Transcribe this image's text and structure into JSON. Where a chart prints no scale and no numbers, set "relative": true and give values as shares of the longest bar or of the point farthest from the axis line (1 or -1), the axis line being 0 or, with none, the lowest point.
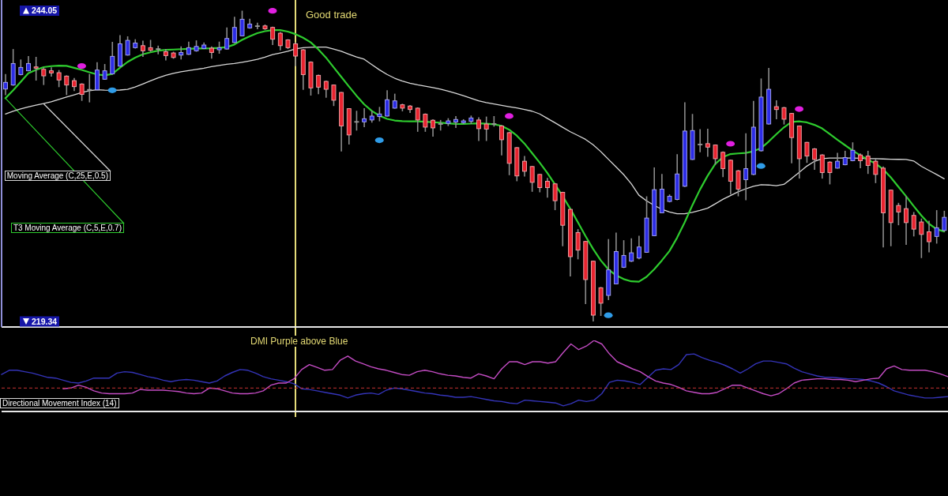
{
  "chart_data": [
    {
      "type": "candlestick",
      "categories": [
        null,
        null,
        null,
        null,
        null,
        null,
        null,
        null,
        null,
        null,
        null,
        null,
        null,
        null,
        null,
        null,
        null,
        null,
        null,
        null,
        null,
        null,
        null,
        null,
        null,
        null,
        null,
        null,
        null,
        null,
        null,
        null,
        null,
        null,
        null,
        null,
        null,
        null,
        null,
        null,
        null,
        null,
        null,
        null,
        null,
        null,
        null,
        null,
        null,
        null,
        null,
        null,
        null,
        null,
        null,
        null,
        null,
        null,
        null,
        null,
        null,
        null,
        null,
        null,
        null,
        null,
        null,
        null,
        null,
        null,
        null,
        null,
        null,
        null,
        null,
        null,
        null,
        null,
        null,
        null,
        null,
        null,
        null,
        null,
        null,
        null,
        null,
        null,
        null,
        null,
        null,
        null,
        null,
        null,
        null,
        null,
        null,
        null,
        null,
        null,
        null,
        null,
        null,
        null,
        null,
        null,
        null,
        null,
        null,
        null,
        null,
        null,
        null,
        null,
        null,
        null,
        null,
        null,
        null,
        null,
        null,
        null,
        null,
        null
      ],
      "ohlc": [
        [
          237.82,
          239.02,
          237.34,
          238.35
        ],
        [
          238.14,
          241.0,
          238.08,
          239.85
        ],
        [
          238.97,
          240.17,
          238.91,
          239.54
        ],
        [
          239.27,
          240.44,
          239.23,
          239.85
        ],
        [
          239.58,
          240.38,
          238.49,
          239.48
        ],
        [
          239.39,
          239.54,
          238.14,
          238.87
        ],
        [
          239.27,
          239.54,
          238.81,
          239.1
        ],
        [
          239.12,
          239.33,
          237.97,
          238.54
        ],
        [
          238.85,
          238.91,
          237.34,
          238.14
        ],
        [
          238.49,
          238.7,
          237.66,
          238.01
        ],
        [
          238.22,
          238.28,
          236.88,
          237.39
        ],
        [
          237.76,
          239.02,
          236.76,
          237.76
        ],
        [
          237.76,
          239.96,
          237.72,
          239.33
        ],
        [
          238.6,
          239.81,
          238.56,
          239.27
        ],
        [
          239.02,
          241.57,
          238.97,
          240.42
        ],
        [
          239.64,
          242.11,
          239.6,
          241.42
        ],
        [
          240.52,
          242.01,
          240.48,
          241.69
        ],
        [
          241.11,
          241.78,
          241.04,
          241.48
        ],
        [
          241.27,
          241.67,
          240.38,
          240.86
        ],
        [
          241.11,
          241.73,
          240.79,
          240.9
        ],
        [
          241.0,
          241.27,
          240.58,
          241.0
        ],
        [
          240.79,
          241.0,
          240.1,
          240.48
        ],
        [
          240.69,
          240.79,
          240.23,
          240.33
        ],
        [
          240.52,
          241.21,
          240.17,
          240.73
        ],
        [
          240.58,
          241.59,
          240.54,
          241.11
        ],
        [
          240.86,
          241.69,
          240.79,
          241.21
        ],
        [
          241.04,
          241.52,
          241.0,
          241.32
        ],
        [
          241.07,
          241.21,
          240.23,
          240.73
        ],
        [
          240.94,
          241.59,
          240.63,
          241.11
        ],
        [
          241.0,
          242.72,
          240.96,
          241.84
        ],
        [
          241.52,
          243.57,
          241.48,
          242.72
        ],
        [
          242.05,
          244.05,
          242.01,
          243.37
        ],
        [
          242.68,
          243.41,
          242.63,
          242.99
        ],
        [
          242.82,
          243.09,
          242.57,
          242.82
        ],
        [
          242.84,
          242.95,
          242.53,
          242.61
        ],
        [
          242.72,
          242.78,
          241.32,
          241.78
        ],
        [
          242.26,
          242.36,
          240.9,
          241.27
        ],
        [
          241.73,
          241.78,
          241.0,
          241.11
        ],
        [
          241.42,
          241.52,
          239.64,
          240.44
        ],
        [
          240.94,
          241.0,
          237.76,
          238.97
        ],
        [
          239.96,
          240.02,
          237.3,
          237.91
        ],
        [
          238.91,
          238.97,
          237.41,
          237.97
        ],
        [
          238.43,
          238.49,
          237.13,
          237.8
        ],
        [
          238.14,
          238.18,
          236.47,
          236.93
        ],
        [
          237.55,
          237.59,
          232.85,
          234.88
        ],
        [
          236.26,
          236.3,
          233.41,
          234.17
        ],
        [
          235.21,
          236.09,
          234.52,
          235.21
        ],
        [
          235.21,
          236.3,
          234.79,
          235.46
        ],
        [
          235.36,
          236.09,
          235.15,
          235.67
        ],
        [
          235.63,
          236.4,
          235.25,
          235.84
        ],
        [
          235.67,
          237.72,
          235.63,
          236.97
        ],
        [
          236.3,
          237.45,
          236.26,
          236.88
        ],
        [
          236.57,
          236.65,
          236.05,
          236.3
        ],
        [
          236.47,
          236.55,
          235.92,
          236.19
        ],
        [
          236.3,
          236.36,
          234.42,
          235.36
        ],
        [
          235.82,
          235.88,
          234.42,
          234.79
        ],
        [
          235.34,
          235.42,
          234.04,
          234.73
        ],
        [
          235.04,
          235.36,
          234.52,
          235.04
        ],
        [
          235.09,
          235.5,
          234.88,
          235.29
        ],
        [
          235.19,
          235.67,
          234.73,
          235.4
        ],
        [
          235.15,
          235.42,
          235.04,
          235.29
        ],
        [
          235.25,
          235.71,
          235.04,
          235.52
        ],
        [
          235.36,
          235.57,
          233.69,
          234.67
        ],
        [
          235.04,
          235.63,
          233.69,
          234.63
        ],
        [
          235.04,
          235.67,
          234.83,
          235.04
        ],
        [
          234.88,
          234.94,
          232.54,
          233.79
        ],
        [
          234.35,
          234.42,
          230.97,
          231.91
        ],
        [
          233.16,
          233.2,
          230.49,
          230.91
        ],
        [
          232.08,
          232.49,
          230.86,
          231.28
        ],
        [
          231.66,
          231.7,
          229.65,
          230.4
        ],
        [
          231.03,
          231.07,
          229.61,
          229.98
        ],
        [
          230.49,
          230.76,
          229.19,
          229.98
        ],
        [
          230.28,
          230.34,
          228.19,
          228.94
        ],
        [
          229.61,
          229.65,
          225.32,
          226.99
        ],
        [
          228.25,
          228.29,
          222.92,
          224.49
        ],
        [
          226.41,
          226.68,
          224.28,
          225.01
        ],
        [
          225.7,
          225.74,
          220.72,
          222.67
        ],
        [
          224.13,
          224.17,
          219.34,
          219.84
        ],
        [
          222.02,
          222.08,
          219.78,
          220.79
        ],
        [
          221.41,
          225.89,
          221.04,
          223.44
        ],
        [
          222.33,
          226.41,
          222.29,
          224.9
        ],
        [
          223.65,
          225.8,
          223.59,
          224.59
        ],
        [
          224.13,
          225.95,
          224.07,
          224.8
        ],
        [
          224.38,
          226.16,
          224.28,
          225.26
        ],
        [
          224.84,
          229.29,
          224.8,
          227.56
        ],
        [
          226.16,
          231.59,
          226.12,
          229.82
        ],
        [
          227.98,
          231.07,
          227.94,
          229.86
        ],
        [
          228.88,
          229.44,
          228.81,
          229.29
        ],
        [
          229.04,
          232.64,
          228.98,
          231.07
        ],
        [
          230.09,
          236.76,
          230.03,
          234.48
        ],
        [
          232.22,
          235.84,
          232.18,
          234.52
        ],
        [
          233.41,
          234.63,
          232.79,
          233.41
        ],
        [
          233.48,
          234.67,
          232.43,
          233.2
        ],
        [
          233.37,
          233.41,
          231.8,
          232.28
        ],
        [
          232.79,
          232.85,
          230.82,
          231.49
        ],
        [
          232.16,
          232.22,
          229.44,
          230.49
        ],
        [
          231.32,
          231.39,
          229.29,
          229.86
        ],
        [
          230.61,
          234.31,
          228.98,
          231.49
        ],
        [
          231.03,
          236.88,
          230.97,
          234.79
        ],
        [
          232.91,
          238.66,
          232.85,
          237.18
        ],
        [
          235.04,
          239.5,
          235.0,
          237.8
        ],
        [
          236.42,
          236.93,
          235.42,
          236.19
        ],
        [
          236.34,
          236.4,
          235.0,
          235.42
        ],
        [
          235.88,
          235.92,
          231.91,
          233.96
        ],
        [
          234.88,
          234.92,
          230.7,
          232.28
        ],
        [
          233.58,
          233.62,
          231.95,
          232.49
        ],
        [
          233.06,
          233.12,
          231.39,
          232.22
        ],
        [
          232.58,
          232.64,
          230.7,
          231.18
        ],
        [
          232.01,
          232.08,
          230.24,
          231.18
        ],
        [
          231.53,
          232.74,
          231.49,
          232.08
        ],
        [
          231.8,
          232.91,
          231.76,
          232.37
        ],
        [
          232.12,
          233.58,
          232.08,
          232.95
        ],
        [
          232.58,
          232.7,
          231.53,
          232.12
        ],
        [
          232.49,
          232.91,
          231.07,
          231.74
        ],
        [
          232.08,
          232.28,
          230.34,
          231.03
        ],
        [
          231.53,
          231.66,
          225.22,
          227.98
        ],
        [
          229.78,
          229.82,
          225.32,
          227.2
        ],
        [
          228.56,
          228.77,
          226.99,
          228.04
        ],
        [
          228.31,
          229.29,
          225.43,
          227.2
        ],
        [
          227.77,
          228.04,
          226.1,
          226.68
        ],
        [
          227.25,
          227.52,
          224.38,
          226.26
        ],
        [
          226.47,
          227.35,
          224.84,
          225.68
        ],
        [
          226.1,
          228.19,
          225.53,
          226.79
        ],
        [
          226.58,
          228.14,
          226.47,
          227.62
        ]
      ],
      "colors": [
        "#2c2ce6",
        "#2c2ce6",
        "#2c2ce6",
        "#2c2ce6",
        "#e8232f",
        "#e8232f",
        "#e8232f",
        "#e8232f",
        "#e8232f",
        "#e8232f",
        "#e8232f",
        "#9a9a9a",
        "#2c2ce6",
        "#2c2ce6",
        "#2c2ce6",
        "#2c2ce6",
        "#2c2ce6",
        "#2c2ce6",
        "#e8232f",
        "#e8232f",
        "#9a9a9a",
        "#e8232f",
        "#e8232f",
        "#2c2ce6",
        "#2c2ce6",
        "#2c2ce6",
        "#2c2ce6",
        "#e8232f",
        "#2c2ce6",
        "#2c2ce6",
        "#2c2ce6",
        "#2c2ce6",
        "#2c2ce6",
        "#9a9a9a",
        "#e8232f",
        "#e8232f",
        "#e8232f",
        "#e8232f",
        "#e8232f",
        "#e8232f",
        "#e8232f",
        "#e8232f",
        "#e8232f",
        "#e8232f",
        "#e8232f",
        "#e8232f",
        "#9a9a9a",
        "#2c2ce6",
        "#2c2ce6",
        "#2c2ce6",
        "#2c2ce6",
        "#2c2ce6",
        "#e8232f",
        "#e8232f",
        "#e8232f",
        "#e8232f",
        "#e8232f",
        "#9a9a9a",
        "#2c2ce6",
        "#2c2ce6",
        "#2c2ce6",
        "#2c2ce6",
        "#e8232f",
        "#e8232f",
        "#9a9a9a",
        "#e8232f",
        "#e8232f",
        "#e8232f",
        "#e8232f",
        "#e8232f",
        "#e8232f",
        "#e8232f",
        "#e8232f",
        "#e8232f",
        "#e8232f",
        "#e8232f",
        "#e8232f",
        "#e8232f",
        "#e8232f",
        "#2c2ce6",
        "#2c2ce6",
        "#2c2ce6",
        "#2c2ce6",
        "#2c2ce6",
        "#2c2ce6",
        "#2c2ce6",
        "#2c2ce6",
        "#2c2ce6",
        "#2c2ce6",
        "#2c2ce6",
        "#2c2ce6",
        "#9a9a9a",
        "#e8232f",
        "#e8232f",
        "#e8232f",
        "#e8232f",
        "#e8232f",
        "#2c2ce6",
        "#2c2ce6",
        "#2c2ce6",
        "#2c2ce6",
        "#e8232f",
        "#e8232f",
        "#e8232f",
        "#e8232f",
        "#e8232f",
        "#e8232f",
        "#e8232f",
        "#e8232f",
        "#2c2ce6",
        "#2c2ce6",
        "#2c2ce6",
        "#e8232f",
        "#e8232f",
        "#e8232f",
        "#e8232f",
        "#e8232f",
        "#e8232f",
        "#e8232f",
        "#e8232f",
        "#e8232f",
        "#e8232f",
        "#2c2ce6",
        "#2c2ce6"
      ],
      "ylim": [
        218.9,
        244.9
      ],
      "yticks": [
        219.34,
        244.05
      ],
      "annotations": [
        "Good trade"
      ],
      "series": [
        {
          "type": "line",
          "name": "Moving Average (C,25,E,0.5)",
          "color": "#d9d9d9",
          "values": [
            235.84,
            236.05,
            236.24,
            236.4,
            236.54,
            236.66,
            236.81,
            237.0,
            237.18,
            237.36,
            237.54,
            237.69,
            237.76,
            237.73,
            237.72,
            237.74,
            237.8,
            237.98,
            238.22,
            238.47,
            238.71,
            238.91,
            239.07,
            239.19,
            239.29,
            239.38,
            239.47,
            239.6,
            239.7,
            239.79,
            239.85,
            239.95,
            240.06,
            240.18,
            240.35,
            240.56,
            240.69,
            240.82,
            241.01,
            241.11,
            241.14,
            241.15,
            241.15,
            241.0,
            240.82,
            240.59,
            240.37,
            240.19,
            239.77,
            239.35,
            238.98,
            238.68,
            238.46,
            238.28,
            238.15,
            238.05,
            237.94,
            237.81,
            237.66,
            237.48,
            237.29,
            237.09,
            236.89,
            236.75,
            236.64,
            236.53,
            236.42,
            236.32,
            236.19,
            236.06,
            235.84,
            235.49,
            235.14,
            234.78,
            234.43,
            234.13,
            233.82,
            233.39,
            232.85,
            232.24,
            231.63,
            231.02,
            230.29,
            229.38,
            228.93,
            228.57,
            228.26,
            228.05,
            227.9,
            227.9,
            228.02,
            228.17,
            228.34,
            228.69,
            229.05,
            229.35,
            229.65,
            229.89,
            230.08,
            230.21,
            230.19,
            230.13,
            230.24,
            230.7,
            231.2,
            231.69,
            232.07,
            232.29,
            232.33,
            232.33,
            232.33,
            232.33,
            232.31,
            232.29,
            232.28,
            232.26,
            232.24,
            232.23,
            232.22,
            232.1,
            231.68,
            231.35,
            231.03,
            230.68
          ]
        },
        {
          "type": "line",
          "name": "T3 Moving Average (C,5,E,0.7)",
          "color": "#2ecc2e",
          "values": [
            237.09,
            237.71,
            238.39,
            239.07,
            239.34,
            239.56,
            239.64,
            239.68,
            239.66,
            239.51,
            239.34,
            239.15,
            238.98,
            238.91,
            239.02,
            239.5,
            239.97,
            240.32,
            240.58,
            240.74,
            240.87,
            240.93,
            240.96,
            240.99,
            241.01,
            241.04,
            241.05,
            241.06,
            241.09,
            241.15,
            241.36,
            241.73,
            242.01,
            242.26,
            242.42,
            242.51,
            242.51,
            242.39,
            242.19,
            241.9,
            241.53,
            240.98,
            240.32,
            239.55,
            238.79,
            238.03,
            237.29,
            236.61,
            236.08,
            235.7,
            235.45,
            235.32,
            235.27,
            235.25,
            235.25,
            235.22,
            235.18,
            235.14,
            235.09,
            235.05,
            235.04,
            235.07,
            235.09,
            235.06,
            235.02,
            234.9,
            234.59,
            234.12,
            233.49,
            232.73,
            231.97,
            231.15,
            230.24,
            229.32,
            228.31,
            227.24,
            226.14,
            225.11,
            224.2,
            223.48,
            223.01,
            222.71,
            222.53,
            222.5,
            222.89,
            223.48,
            224.18,
            224.94,
            225.99,
            227.22,
            228.57,
            229.82,
            230.92,
            231.86,
            232.4,
            232.65,
            232.7,
            232.74,
            232.87,
            233.12,
            233.64,
            234.22,
            234.77,
            235.2,
            235.25,
            235.17,
            234.97,
            234.69,
            234.25,
            233.79,
            233.36,
            232.93,
            232.55,
            232.2,
            231.9,
            231.44,
            230.8,
            230.05,
            229.3,
            228.52,
            227.77,
            227.11,
            226.68,
            226.49
          ]
        },
        {
          "type": "scatter",
          "color": "#e01fe0",
          "marker": "circle",
          "values": [
            null,
            null,
            null,
            null,
            null,
            null,
            null,
            null,
            null,
            null,
            239.65,
            null,
            null,
            null,
            null,
            null,
            null,
            null,
            null,
            null,
            null,
            null,
            null,
            null,
            null,
            null,
            null,
            null,
            null,
            null,
            null,
            null,
            null,
            null,
            null,
            244.04,
            null,
            null,
            null,
            null,
            null,
            null,
            null,
            null,
            null,
            null,
            null,
            null,
            null,
            null,
            null,
            null,
            null,
            null,
            null,
            null,
            null,
            null,
            null,
            null,
            null,
            null,
            null,
            null,
            null,
            null,
            235.67,
            null,
            null,
            null,
            null,
            null,
            null,
            null,
            null,
            null,
            null,
            null,
            null,
            null,
            null,
            null,
            null,
            null,
            null,
            null,
            null,
            null,
            null,
            null,
            null,
            null,
            null,
            null,
            null,
            233.47,
            null,
            null,
            null,
            null,
            null,
            null,
            null,
            null,
            236.23,
            null,
            null,
            null,
            null,
            null,
            null,
            null,
            null,
            null,
            null,
            null,
            null,
            null,
            null,
            null,
            null,
            null,
            null,
            null
          ]
        },
        {
          "type": "scatter",
          "color": "#2f9ce8",
          "marker": "circle",
          "values": [
            null,
            null,
            null,
            null,
            null,
            null,
            null,
            null,
            null,
            null,
            null,
            null,
            null,
            null,
            237.72,
            null,
            null,
            null,
            null,
            null,
            null,
            null,
            null,
            null,
            null,
            null,
            null,
            null,
            null,
            null,
            null,
            null,
            null,
            null,
            null,
            null,
            null,
            null,
            null,
            null,
            null,
            null,
            null,
            null,
            null,
            null,
            null,
            null,
            null,
            233.75,
            null,
            null,
            null,
            null,
            null,
            null,
            null,
            null,
            null,
            null,
            null,
            null,
            null,
            null,
            null,
            null,
            null,
            null,
            null,
            null,
            null,
            null,
            null,
            null,
            null,
            null,
            null,
            null,
            null,
            219.83,
            null,
            null,
            null,
            null,
            null,
            null,
            null,
            null,
            null,
            null,
            null,
            null,
            null,
            null,
            null,
            null,
            null,
            null,
            null,
            231.7,
            null,
            null,
            null,
            null,
            null,
            null,
            null,
            null,
            null,
            null,
            null,
            null,
            null,
            null,
            null,
            null,
            null,
            null,
            null,
            null,
            null,
            null,
            null,
            null
          ]
        }
      ]
    },
    {
      "type": "line",
      "title": "Directional Movement Index (14)",
      "relative": true,
      "categories": [
        null,
        null,
        null,
        null,
        null,
        null,
        null,
        null,
        null,
        null,
        null,
        null,
        null,
        null,
        null,
        null,
        null,
        null,
        null,
        null,
        null,
        null,
        null,
        null,
        null,
        null,
        null,
        null,
        null,
        null,
        null,
        null,
        null,
        null,
        null,
        null,
        null,
        null,
        null,
        null,
        null,
        null,
        null,
        null,
        null,
        null,
        null,
        null,
        null,
        null,
        null,
        null,
        null,
        null,
        null,
        null,
        null,
        null,
        null,
        null,
        null,
        null,
        null,
        null,
        null,
        null,
        null,
        null,
        null,
        null,
        null,
        null,
        null,
        null,
        null,
        null,
        null,
        null,
        null,
        null,
        null,
        null,
        null,
        null,
        null,
        null,
        null,
        null,
        null,
        null,
        null,
        null,
        null,
        null,
        null,
        null,
        null,
        null,
        null,
        null,
        null,
        null,
        null,
        null,
        null,
        null,
        null,
        null,
        null,
        null,
        null,
        null,
        null,
        null,
        null,
        null,
        null,
        null,
        null,
        null,
        null,
        null,
        null,
        null
      ],
      "annotations": [
        "DMI Purple above Blue"
      ],
      "ref_lines": [
        {
          "axis": "y",
          "value": 0.33,
          "color": "#c83232",
          "line_style": "dashed"
        }
      ],
      "series": [
        {
          "color": "#3434b8",
          "values": [
            0.52,
            0.58,
            0.58,
            0.56,
            0.54,
            0.51,
            0.48,
            0.47,
            0.44,
            0.41,
            0.4,
            0.43,
            0.47,
            0.47,
            0.47,
            0.54,
            0.56,
            0.55,
            0.52,
            0.49,
            0.47,
            0.44,
            0.42,
            0.44,
            0.45,
            0.44,
            0.42,
            0.4,
            0.43,
            0.5,
            0.55,
            0.59,
            0.58,
            0.54,
            0.49,
            0.46,
            0.44,
            0.42,
            0.39,
            0.32,
            0.31,
            0.29,
            0.27,
            0.25,
            0.23,
            0.19,
            0.23,
            0.25,
            0.26,
            0.24,
            0.3,
            0.33,
            0.32,
            0.3,
            0.28,
            0.26,
            0.25,
            0.23,
            0.22,
            0.2,
            0.2,
            0.21,
            0.19,
            0.17,
            0.15,
            0.14,
            0.12,
            0.11,
            0.16,
            0.15,
            0.14,
            0.13,
            0.12,
            0.08,
            0.11,
            0.16,
            0.14,
            0.16,
            0.25,
            0.41,
            0.44,
            0.43,
            0.41,
            0.38,
            0.48,
            0.58,
            0.6,
            0.59,
            0.66,
            0.8,
            0.81,
            0.76,
            0.72,
            0.69,
            0.65,
            0.6,
            0.54,
            0.6,
            0.67,
            0.71,
            0.71,
            0.69,
            0.67,
            0.61,
            0.56,
            0.53,
            0.5,
            0.48,
            0.48,
            0.47,
            0.46,
            0.46,
            0.45,
            0.43,
            0.4,
            0.35,
            0.29,
            0.26,
            0.23,
            0.21,
            0.19,
            0.19,
            0.2,
            0.21
          ]
        },
        {
          "color": "#c44cc4",
          "values": [
            null,
            null,
            null,
            null,
            null,
            null,
            null,
            null,
            0.32,
            0.33,
            0.37,
            0.34,
            0.29,
            0.26,
            0.25,
            0.25,
            0.25,
            0.26,
            0.31,
            0.3,
            0.3,
            0.3,
            0.29,
            0.28,
            0.26,
            0.25,
            0.26,
            0.33,
            0.32,
            0.29,
            0.26,
            0.25,
            0.25,
            0.26,
            0.29,
            0.37,
            0.4,
            0.4,
            0.46,
            0.59,
            0.66,
            0.62,
            0.58,
            0.59,
            0.72,
            0.78,
            0.71,
            0.67,
            0.63,
            0.6,
            0.58,
            0.55,
            0.52,
            0.51,
            0.56,
            0.58,
            0.56,
            0.53,
            0.51,
            0.5,
            0.48,
            0.47,
            0.53,
            0.5,
            0.46,
            0.6,
            0.7,
            0.7,
            0.66,
            0.7,
            0.7,
            0.68,
            0.7,
            0.83,
            0.95,
            0.87,
            0.92,
            1,
            0.95,
            0.81,
            0.7,
            0.65,
            0.6,
            0.56,
            0.49,
            0.43,
            0.4,
            0.38,
            0.34,
            0.29,
            0.27,
            0.25,
            0.25,
            0.27,
            0.32,
            0.37,
            0.37,
            0.33,
            0.29,
            0.25,
            0.22,
            0.25,
            0.32,
            0.4,
            0.44,
            0.45,
            0.46,
            0.46,
            0.45,
            0.45,
            0.44,
            0.42,
            0.44,
            0.46,
            0.47,
            0.6,
            0.64,
            0.59,
            0.58,
            0.58,
            0.58,
            0.56,
            0.53,
            0.49
          ]
        }
      ]
    }
  ]
}
